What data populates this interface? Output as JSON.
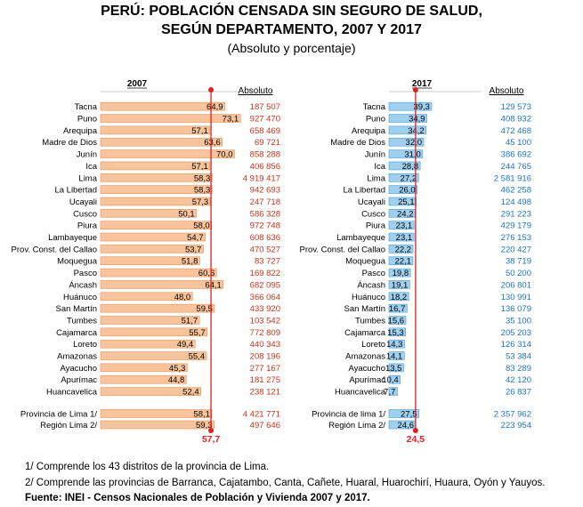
{
  "title_line1": "PERÚ: POBLACIÓN CENSADA SIN SEGURO DE SALUD,",
  "title_line2": "SEGÚN DEPARTAMENTO, 2007 Y 2017",
  "subtitle": "(Absoluto y porcentaje)",
  "footnotes": [
    "1/ Comprende los 43 distritos de la provincia de Lima.",
    "2/ Comprende las provincias de Barranca, Cajatambo, Canta, Cañete, Huaral, Huarochirí, Huaura, Oyón y Yauyos."
  ],
  "source": "Fuente: INEI - Censos Nacionales de Población y Vivienda 2007 y 2017.",
  "colors": {
    "bar_2007": "#f9c49b",
    "bar_2007_stroke": "#e0945a",
    "bar_2017": "#9fd0ef",
    "bar_2017_stroke": "#4a9fd4",
    "reference_line": "#e02020",
    "absolute_2007": "#c8341c",
    "absolute_2017": "#1f74c4"
  },
  "chart_data": [
    {
      "type": "bar",
      "orientation": "horizontal",
      "year_label": "2007",
      "absolute_header": "Absoluto",
      "categories": [
        "Tacna",
        "Puno",
        "Arequipa",
        "Madre de Dios",
        "Junín",
        "Ica",
        "Lima",
        "La Libertad",
        "Ucayali",
        "Cusco",
        "Piura",
        "Lambayeque",
        "Prov. Const. del Callao",
        "Moquegua",
        "Pasco",
        "Áncash",
        "Huánuco",
        "San Martín",
        "Tumbes",
        "Cajamarca",
        "Loreto",
        "Amazonas",
        "Ayacucho",
        "Apurímac",
        "Huancavelica"
      ],
      "values": [
        64.9,
        73.1,
        57.1,
        63.6,
        70.0,
        57.1,
        58.3,
        58.3,
        57.3,
        50.1,
        58.0,
        54.7,
        53.7,
        51.8,
        60.6,
        64.1,
        48.0,
        59.5,
        51.7,
        55.7,
        49.4,
        55.4,
        45.3,
        44.8,
        52.4
      ],
      "value_labels": [
        "64,9",
        "73,1",
        "57,1",
        "63,6",
        "70,0",
        "57,1",
        "58,3",
        "58,3",
        "57,3",
        "50,1",
        "58,0",
        "54,7",
        "53,7",
        "51,8",
        "60,6",
        "64,1",
        "48,0",
        "59,5",
        "51,7",
        "55,7",
        "49,4",
        "55,4",
        "45,3",
        "44,8",
        "52,4"
      ],
      "absolute": [
        "187 507",
        "927 470",
        "658 469",
        "69 721",
        "858 288",
        "406 856",
        "4 919 417",
        "942 693",
        "247 718",
        "586 328",
        "972 748",
        "608 636",
        "470 527",
        "83 727",
        "169 822",
        "682 095",
        "366 064",
        "433 920",
        "103 542",
        "772 809",
        "440 343",
        "208 196",
        "277 167",
        "181 275",
        "238 121"
      ],
      "extra_categories": [
        "Provincia de Lima 1/",
        "Región Lima 2/"
      ],
      "extra_values": [
        58.1,
        59.3
      ],
      "extra_value_labels": [
        "58,1",
        "59,3"
      ],
      "extra_absolute": [
        "4 421 771",
        "497 646"
      ],
      "reference_value": 57.7,
      "reference_label": "57,7"
    },
    {
      "type": "bar",
      "orientation": "horizontal",
      "year_label": "2017",
      "absolute_header": "Absoluto",
      "categories": [
        "Tacna",
        "Puno",
        "Arequipa",
        "Madre de Dios",
        "Junín",
        "Ica",
        "Lima",
        "La Libertad",
        "Ucayali",
        "Cusco",
        "Piura",
        "Lambayeque",
        "Prov. Const. del Callao",
        "Moquegua",
        "Pasco",
        "Áncash",
        "Huánuco",
        "San Martín",
        "Tumbes",
        "Cajamarca",
        "Loreto",
        "Amazonas",
        "Ayacucho",
        "Apurímac",
        "Huancavelica"
      ],
      "values": [
        39.3,
        34.9,
        34.2,
        32.0,
        31.0,
        28.8,
        27.2,
        26.0,
        25.1,
        24.2,
        23.1,
        23.1,
        22.2,
        22.1,
        19.8,
        19.1,
        18.2,
        16.7,
        15.6,
        15.3,
        14.3,
        14.1,
        13.5,
        10.4,
        7.7
      ],
      "value_labels": [
        "39,3",
        "34,9",
        "34,2",
        "32,0",
        "31,0",
        "28,8",
        "27,2",
        "26,0",
        "25,1",
        "24,2",
        "23,1",
        "23,1",
        "22,2",
        "22,1",
        "19,8",
        "19,1",
        "18,2",
        "16,7",
        "15,6",
        "15,3",
        "14,3",
        "14,1",
        "13,5",
        "10,4",
        "7,7"
      ],
      "absolute": [
        "129 573",
        "408 932",
        "472 468",
        "45 100",
        "386 692",
        "244 765",
        "2 581 916",
        "462 258",
        "124 498",
        "291 223",
        "429 179",
        "276 153",
        "220 427",
        "38 719",
        "50 200",
        "206 801",
        "130 991",
        "136 079",
        "35 100",
        "205 203",
        "126 314",
        "53 384",
        "83 289",
        "42 120",
        "26 837"
      ],
      "extra_categories": [
        "Provincia de lima 1/",
        "Región Lima 2/"
      ],
      "extra_values": [
        27.5,
        24.6
      ],
      "extra_value_labels": [
        "27,5",
        "24,6"
      ],
      "extra_absolute": [
        "2 357 962",
        "223 954"
      ],
      "reference_value": 24.5,
      "reference_label": "24,5"
    }
  ]
}
